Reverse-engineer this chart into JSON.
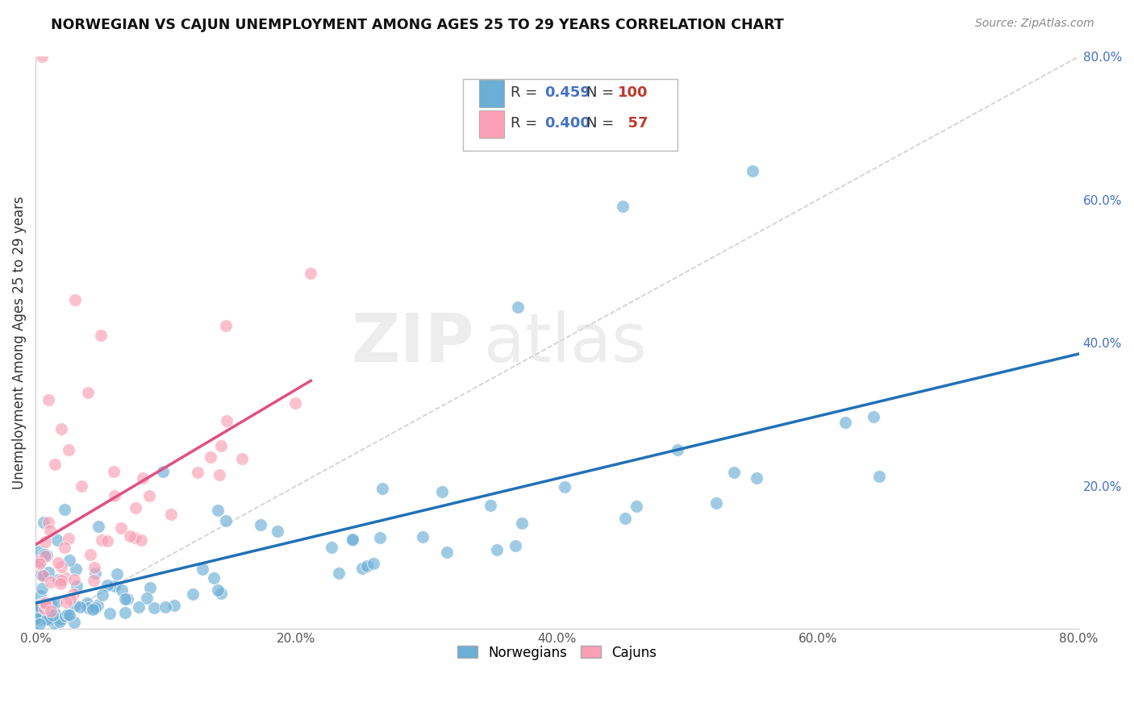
{
  "title": "NORWEGIAN VS CAJUN UNEMPLOYMENT AMONG AGES 25 TO 29 YEARS CORRELATION CHART",
  "source": "Source: ZipAtlas.com",
  "ylabel": "Unemployment Among Ages 25 to 29 years",
  "xlim": [
    0.0,
    0.8
  ],
  "ylim": [
    0.0,
    0.8
  ],
  "xtick_labels": [
    "0.0%",
    "20.0%",
    "40.0%",
    "60.0%",
    "80.0%"
  ],
  "xtick_vals": [
    0.0,
    0.2,
    0.4,
    0.6,
    0.8
  ],
  "right_ytick_labels": [
    "20.0%",
    "40.0%",
    "60.0%",
    "80.0%"
  ],
  "right_ytick_vals": [
    0.2,
    0.4,
    0.6,
    0.8
  ],
  "norwegian_color": "#6baed6",
  "cajun_color": "#fa9fb5",
  "norwegian_line_color": "#2171b5",
  "cajun_line_color": "#e05080",
  "diagonal_color": "#bbbbbb",
  "R_norwegian": 0.459,
  "N_norwegian": 100,
  "R_cajun": 0.4,
  "N_cajun": 57,
  "watermark_zip": "ZIP",
  "watermark_atlas": "atlas",
  "background_color": "#ffffff",
  "grid_color": "#cccccc",
  "legend_R_color": "#4472c4",
  "legend_N_color": "#c0392b",
  "legend_text_color": "#333333"
}
